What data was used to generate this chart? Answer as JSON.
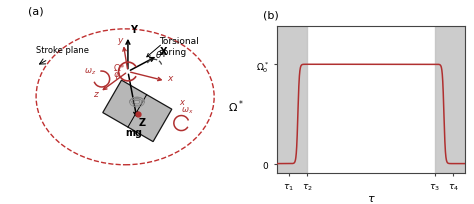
{
  "panel_a_label": "(a)",
  "panel_b_label": "(b)",
  "bg_color": "#ffffff",
  "stroke_plane_label": "Stroke plane",
  "torsional_spring_label": "Torsional\nspring",
  "mg_label": "mg",
  "red_color": "#b03030",
  "dark_red": "#aa2020",
  "gray_color": "#888888",
  "light_gray": "#cccccc",
  "dark_gray": "#444444",
  "plate_color": "#b0b0b0",
  "ellipse_color": "#c03030",
  "arrow_color": "#222222",
  "plot_bg_gray": "#c0c0c0",
  "signal_rise_tau1": 0.06,
  "signal_rise_tau2": 0.16,
  "signal_fall_tau3": 0.84,
  "signal_fall_tau4": 0.94,
  "signal_high": 0.72
}
